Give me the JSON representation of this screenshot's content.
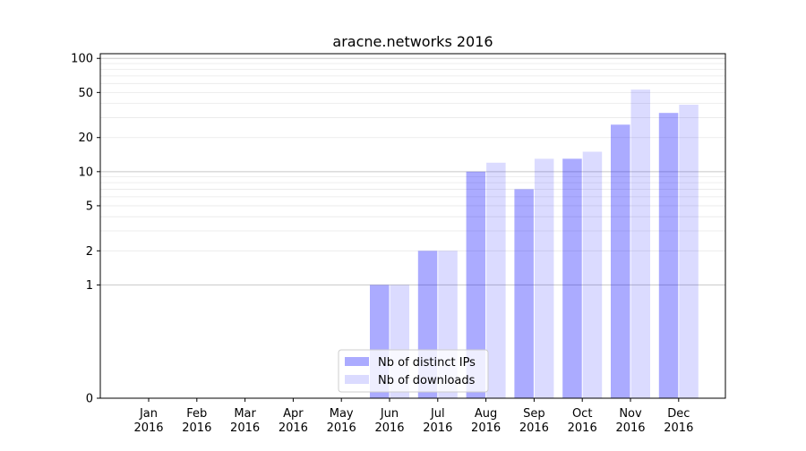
{
  "chart_data": {
    "type": "bar",
    "title": "aracne.networks 2016",
    "xlabel": "",
    "ylabel": "",
    "yscale": "symlog",
    "ylim": [
      0,
      110
    ],
    "y_ticks": [
      {
        "value": 0,
        "label": "0"
      },
      {
        "value": 1,
        "label": "1"
      },
      {
        "value": 2,
        "label": "2"
      },
      {
        "value": 5,
        "label": "5"
      },
      {
        "value": 10,
        "label": "10"
      },
      {
        "value": 20,
        "label": "20"
      },
      {
        "value": 50,
        "label": "50"
      },
      {
        "value": 100,
        "label": "100"
      }
    ],
    "categories": [
      [
        "Jan",
        "2016"
      ],
      [
        "Feb",
        "2016"
      ],
      [
        "Mar",
        "2016"
      ],
      [
        "Apr",
        "2016"
      ],
      [
        "May",
        "2016"
      ],
      [
        "Jun",
        "2016"
      ],
      [
        "Jul",
        "2016"
      ],
      [
        "Aug",
        "2016"
      ],
      [
        "Sep",
        "2016"
      ],
      [
        "Oct",
        "2016"
      ],
      [
        "Nov",
        "2016"
      ],
      [
        "Dec",
        "2016"
      ]
    ],
    "series": [
      {
        "name": "Nb of distinct IPs",
        "color": "#0000ff",
        "opacity": 0.33,
        "values": [
          0,
          0,
          0,
          0,
          0,
          1,
          2,
          10,
          7,
          13,
          26,
          33
        ]
      },
      {
        "name": "Nb of downloads",
        "color": "#0000ff",
        "opacity": 0.14,
        "values": [
          0,
          0,
          0,
          0,
          0,
          1,
          2,
          12,
          13,
          15,
          53,
          39
        ]
      }
    ],
    "grid": "horizontal",
    "legend_position": "lower-center"
  }
}
